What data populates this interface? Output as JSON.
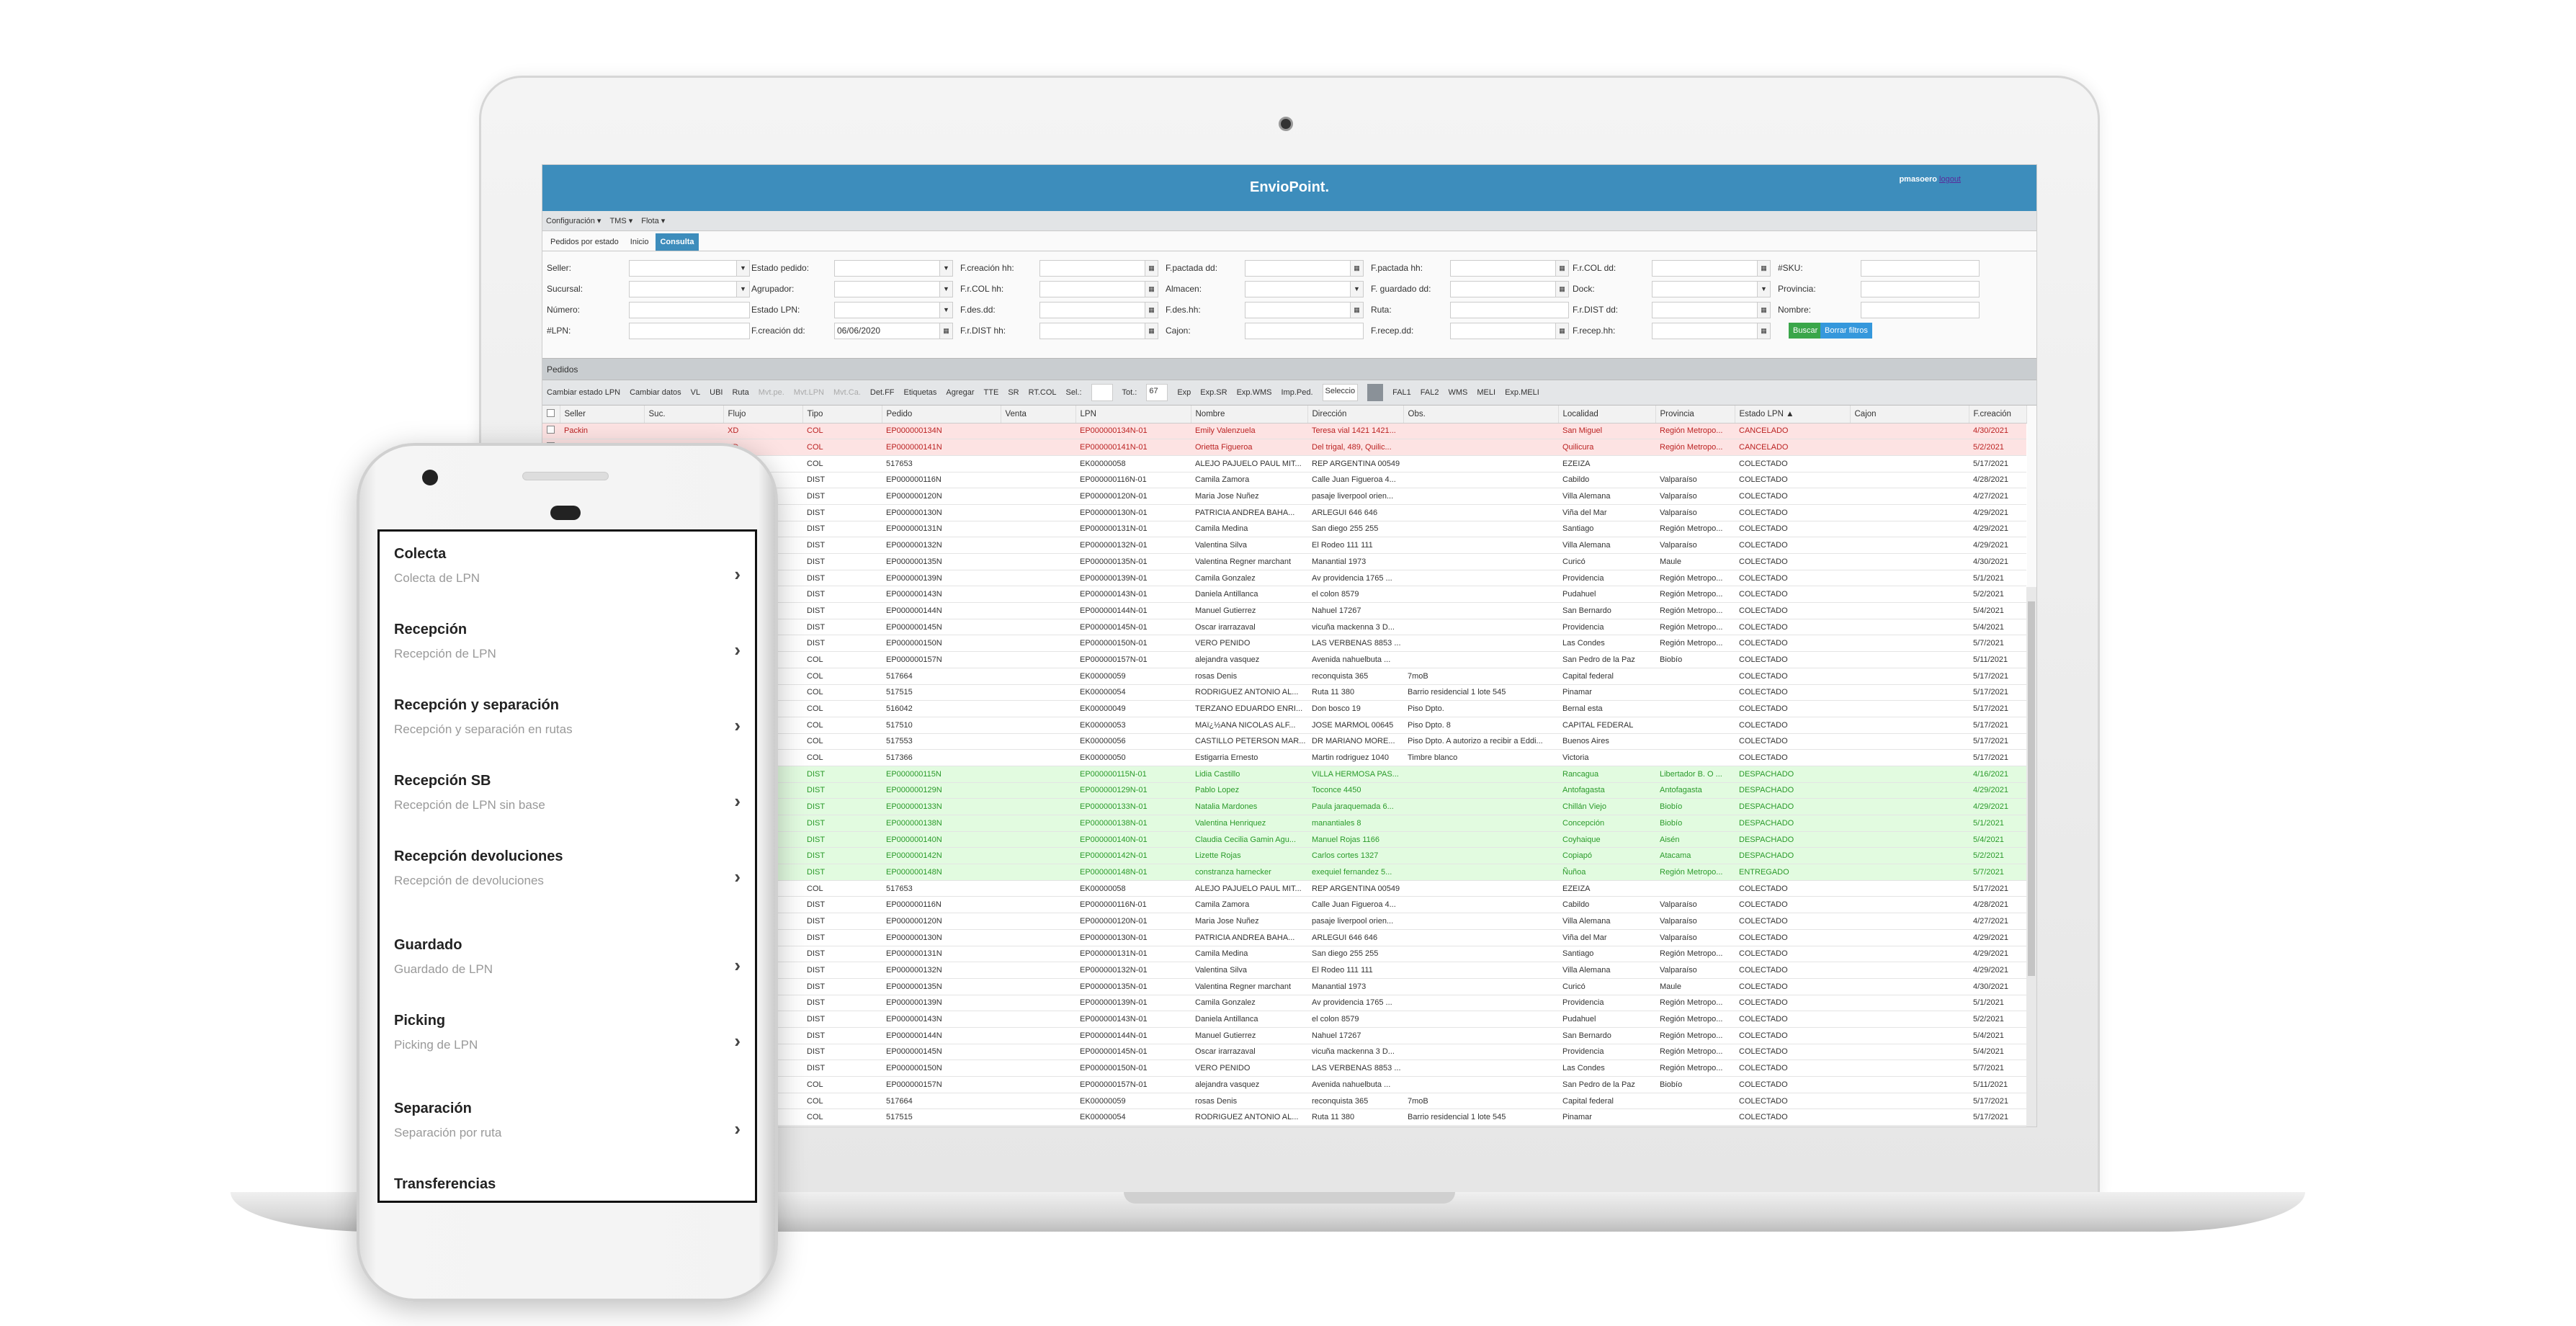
{
  "app": {
    "brand": "EnvioPoint.",
    "user": "pmasoero",
    "logout": "logout"
  },
  "menu": [
    "Configuración ▾",
    "TMS ▾",
    "Flota ▾"
  ],
  "tabs": [
    {
      "label": "Pedidos por estado"
    },
    {
      "label": "Inicio"
    },
    {
      "label": "Consulta",
      "active": true
    }
  ],
  "filters": {
    "labels": [
      [
        "Seller:",
        "Estado pedido:",
        "F.creación hh:",
        "F.pactada dd:",
        "F.pactada hh:",
        "F.r.COL dd:",
        "#SKU:"
      ],
      [
        "Sucursal:",
        "Agrupador:",
        "F.r.COL hh:",
        "Almacen:",
        "F. guardado dd:",
        "Dock:",
        "Provincia:"
      ],
      [
        "Número:",
        "Estado LPN:",
        "F.des.dd:",
        "F.des.hh:",
        "Ruta:",
        "F.r.DIST dd:",
        "Nombre:"
      ],
      [
        "#LPN:",
        "F.creación dd:",
        "F.r.DIST hh:",
        "Cajon:",
        "F.recep.dd:",
        "F.recep.hh:"
      ]
    ],
    "fecha_creacion_dd": "06/06/2020",
    "buscar": "Buscar",
    "borrar": "Borrar filtros"
  },
  "pedidos_title": "Pedidos",
  "toolbar": {
    "left": [
      "Cambiar estado LPN",
      "Cambiar datos",
      "VL",
      "UBI",
      "Ruta"
    ],
    "disabled": [
      "Mvt.pe.",
      "Mvt.LPN",
      "Mvt.Ca."
    ],
    "mid": [
      "Det.FF",
      "Etiquetas",
      "Agregar",
      "TTE",
      "SR",
      "RT.COL"
    ],
    "sel_label": "Sel.:",
    "tot_label": "Tot.:",
    "tot": "67",
    "right": [
      "Exp",
      "Exp.SR",
      "Exp.WMS",
      "Imp.Ped."
    ],
    "select_placeholder": "Seleccio",
    "end": [
      "FAL1",
      "FAL2",
      "WMS",
      "MELI",
      "Exp.MELI"
    ]
  },
  "columns": [
    "",
    "Seller",
    "Suc.",
    "Flujo",
    "Tipo",
    "Pedido",
    "Venta",
    "LPN",
    "Nombre",
    "Dirección",
    "Obs.",
    "Localidad",
    "Provincia",
    "Estado LPN ▲",
    "Cajon",
    "F.creación"
  ],
  "colors": {
    "header": "#3d8dbc",
    "cancel_bg": "#fde3e3",
    "green_bg": "#e2fbe0",
    "buscar": "#3aa64a",
    "borrar": "#3598dc"
  },
  "rows": [
    [
      "cancel",
      "Packin",
      "",
      "XD",
      "COL",
      "EP000000134N",
      "",
      "EP000000134N-01",
      "Emily Valenzuela",
      "Teresa vial 1421 1421...",
      "",
      "San Miguel",
      "Región Metropo...",
      "CANCELADO",
      "",
      "4/30/2021"
    ],
    [
      "cancel",
      "",
      "",
      "XD",
      "COL",
      "EP000000141N",
      "",
      "EP000000141N-01",
      "Orietta Figueroa",
      "Del trigal, 489, Quilic...",
      "",
      "Quilicura",
      "Región Metropo...",
      "CANCELADO",
      "",
      "5/2/2021"
    ],
    [
      "",
      "",
      "",
      "",
      "COL",
      "517653",
      "",
      "EK00000058",
      "ALEJO PAJUELO PAUL MIT...",
      "REP ARGENTINA 00549",
      "",
      "EZEIZA",
      "",
      "COLECTADO",
      "",
      "5/17/2021"
    ],
    [
      "",
      "",
      "",
      "",
      "DIST",
      "EP000000116N",
      "",
      "EP000000116N-01",
      "Camila Zamora",
      "Calle Juan Figueroa 4...",
      "",
      "Cabildo",
      "Valparaíso",
      "COLECTADO",
      "",
      "4/28/2021"
    ],
    [
      "",
      "",
      "",
      "",
      "DIST",
      "EP000000120N",
      "",
      "EP000000120N-01",
      "Maria Jose Nuñez",
      "pasaje liverpool orien...",
      "",
      "Villa Alemana",
      "Valparaíso",
      "COLECTADO",
      "",
      "4/27/2021"
    ],
    [
      "",
      "",
      "",
      "",
      "DIST",
      "EP000000130N",
      "",
      "EP000000130N-01",
      "PATRICIA ANDREA BAHA...",
      "ARLEGUI 646 646",
      "",
      "Viña del Mar",
      "Valparaíso",
      "COLECTADO",
      "",
      "4/29/2021"
    ],
    [
      "",
      "",
      "",
      "",
      "DIST",
      "EP000000131N",
      "",
      "EP000000131N-01",
      "Camila Medina",
      "San diego 255 255",
      "",
      "Santiago",
      "Región Metropo...",
      "COLECTADO",
      "",
      "4/29/2021"
    ],
    [
      "",
      "",
      "",
      "",
      "DIST",
      "EP000000132N",
      "",
      "EP000000132N-01",
      "Valentina Silva",
      "El Rodeo 111 111",
      "",
      "Villa Alemana",
      "Valparaíso",
      "COLECTADO",
      "",
      "4/29/2021"
    ],
    [
      "",
      "",
      "",
      "",
      "DIST",
      "EP000000135N",
      "",
      "EP000000135N-01",
      "Valentina Regner marchant",
      "Manantial 1973",
      "",
      "Curicó",
      "Maule",
      "COLECTADO",
      "",
      "4/30/2021"
    ],
    [
      "",
      "",
      "",
      "",
      "DIST",
      "EP000000139N",
      "",
      "EP000000139N-01",
      "Camila Gonzalez",
      "Av providencia 1765 ...",
      "",
      "Providencia",
      "Región Metropo...",
      "COLECTADO",
      "",
      "5/1/2021"
    ],
    [
      "",
      "",
      "",
      "",
      "DIST",
      "EP000000143N",
      "",
      "EP000000143N-01",
      "Daniela Antillanca",
      "el colon 8579",
      "",
      "Pudahuel",
      "Región Metropo...",
      "COLECTADO",
      "",
      "5/2/2021"
    ],
    [
      "",
      "",
      "",
      "",
      "DIST",
      "EP000000144N",
      "",
      "EP000000144N-01",
      "Manuel Gutierrez",
      "Nahuel 17267",
      "",
      "San Bernardo",
      "Región Metropo...",
      "COLECTADO",
      "",
      "5/4/2021"
    ],
    [
      "",
      "",
      "",
      "",
      "DIST",
      "EP000000145N",
      "",
      "EP000000145N-01",
      "Oscar irarrazaval",
      "vicuña mackenna 3 D...",
      "",
      "Providencia",
      "Región Metropo...",
      "COLECTADO",
      "",
      "5/4/2021"
    ],
    [
      "",
      "",
      "",
      "",
      "DIST",
      "EP000000150N",
      "",
      "EP000000150N-01",
      "VERO PENIDO",
      "LAS VERBENAS 8853 ...",
      "",
      "Las Condes",
      "Región Metropo...",
      "COLECTADO",
      "",
      "5/7/2021"
    ],
    [
      "",
      "",
      "",
      "",
      "COL",
      "EP000000157N",
      "",
      "EP000000157N-01",
      "alejandra vasquez",
      "Avenida nahuelbuta ...",
      "",
      "San Pedro de la Paz",
      "Biobío",
      "COLECTADO",
      "",
      "5/11/2021"
    ],
    [
      "",
      "",
      "",
      "",
      "COL",
      "517664",
      "",
      "EK00000059",
      "rosas Denis",
      "reconquista 365",
      "7moB",
      "Capital federal",
      "",
      "COLECTADO",
      "",
      "5/17/2021"
    ],
    [
      "",
      "",
      "",
      "",
      "COL",
      "517515",
      "",
      "EK00000054",
      "RODRIGUEZ ANTONIO AL...",
      "Ruta 11 380",
      "Barrio residencial 1 lote 545",
      "Pinamar",
      "",
      "COLECTADO",
      "",
      "5/17/2021"
    ],
    [
      "",
      "",
      "",
      "",
      "COL",
      "516042",
      "",
      "EK00000049",
      "TERZANO EDUARDO ENRI...",
      "Don bosco 19",
      "Piso Dpto.",
      "Bernal esta",
      "",
      "COLECTADO",
      "",
      "5/17/2021"
    ],
    [
      "",
      "",
      "",
      "",
      "COL",
      "517510",
      "",
      "EK00000053",
      "MAï¿½ANA NICOLAS ALF...",
      "JOSE MARMOL 00645",
      "Piso Dpto. 8",
      "CAPITAL FEDERAL",
      "",
      "COLECTADO",
      "",
      "5/17/2021"
    ],
    [
      "",
      "",
      "",
      "",
      "COL",
      "517553",
      "",
      "EK00000056",
      "CASTILLO PETERSON MAR...",
      "DR MARIANO MORE...",
      "Piso Dpto. A autorizo a recibir a Eddi...",
      "Buenos Aires",
      "",
      "COLECTADO",
      "",
      "5/17/2021"
    ],
    [
      "",
      "",
      "",
      "",
      "COL",
      "517366",
      "",
      "EK00000050",
      "Estigarria Ernesto",
      "Martin rodriguez 1040",
      "Timbre blanco",
      "Victoria",
      "",
      "COLECTADO",
      "",
      "5/17/2021"
    ],
    [
      "green",
      "",
      "",
      "",
      "DIST",
      "EP000000115N",
      "",
      "EP000000115N-01",
      "Lidia Castillo",
      "VILLA HERMOSA PAS...",
      "",
      "Rancagua",
      "Libertador B. O ...",
      "DESPACHADO",
      "",
      "4/16/2021"
    ],
    [
      "green",
      "",
      "",
      "",
      "DIST",
      "EP000000129N",
      "",
      "EP000000129N-01",
      "Pablo Lopez",
      "Toconce 4450",
      "",
      "Antofagasta",
      "Antofagasta",
      "DESPACHADO",
      "",
      "4/29/2021"
    ],
    [
      "green",
      "",
      "",
      "",
      "DIST",
      "EP000000133N",
      "",
      "EP000000133N-01",
      "Natalia Mardones",
      "Paula jaraquemada 6...",
      "",
      "Chillán Viejo",
      "Biobío",
      "DESPACHADO",
      "",
      "4/29/2021"
    ],
    [
      "green",
      "",
      "",
      "",
      "DIST",
      "EP000000138N",
      "",
      "EP000000138N-01",
      "Valentina Henriquez",
      "manantiales 8",
      "",
      "Concepción",
      "Biobío",
      "DESPACHADO",
      "",
      "5/1/2021"
    ],
    [
      "green",
      "",
      "",
      "",
      "DIST",
      "EP000000140N",
      "",
      "EP000000140N-01",
      "Claudia Cecilia Gamin Agu...",
      "Manuel Rojas 1166",
      "",
      "Coyhaique",
      "Aisén",
      "DESPACHADO",
      "",
      "5/4/2021"
    ],
    [
      "green",
      "",
      "",
      "",
      "DIST",
      "EP000000142N",
      "",
      "EP000000142N-01",
      "Lizette Rojas",
      "Carlos cortes 1327",
      "",
      "Copiapó",
      "Atacama",
      "DESPACHADO",
      "",
      "5/2/2021"
    ],
    [
      "green",
      "",
      "",
      "",
      "DIST",
      "EP000000148N",
      "",
      "EP000000148N-01",
      "constranza harnecker",
      "exequiel fernandez 5...",
      "",
      "Ñuñoa",
      "Región Metropo...",
      "ENTREGADO",
      "",
      "5/7/2021"
    ],
    [
      "",
      "",
      "",
      "",
      "COL",
      "517653",
      "",
      "EK00000058",
      "ALEJO PAJUELO PAUL MIT...",
      "REP ARGENTINA 00549",
      "",
      "EZEIZA",
      "",
      "COLECTADO",
      "",
      "5/17/2021"
    ],
    [
      "",
      "",
      "",
      "",
      "DIST",
      "EP000000116N",
      "",
      "EP000000116N-01",
      "Camila Zamora",
      "Calle Juan Figueroa 4...",
      "",
      "Cabildo",
      "Valparaíso",
      "COLECTADO",
      "",
      "4/28/2021"
    ],
    [
      "",
      "",
      "",
      "",
      "DIST",
      "EP000000120N",
      "",
      "EP000000120N-01",
      "Maria Jose Nuñez",
      "pasaje liverpool orien...",
      "",
      "Villa Alemana",
      "Valparaíso",
      "COLECTADO",
      "",
      "4/27/2021"
    ],
    [
      "",
      "",
      "",
      "",
      "DIST",
      "EP000000130N",
      "",
      "EP000000130N-01",
      "PATRICIA ANDREA BAHA...",
      "ARLEGUI 646 646",
      "",
      "Viña del Mar",
      "Valparaíso",
      "COLECTADO",
      "",
      "4/29/2021"
    ],
    [
      "",
      "",
      "",
      "",
      "DIST",
      "EP000000131N",
      "",
      "EP000000131N-01",
      "Camila Medina",
      "San diego 255 255",
      "",
      "Santiago",
      "Región Metropo...",
      "COLECTADO",
      "",
      "4/29/2021"
    ],
    [
      "",
      "",
      "",
      "",
      "DIST",
      "EP000000132N",
      "",
      "EP000000132N-01",
      "Valentina Silva",
      "El Rodeo 111 111",
      "",
      "Villa Alemana",
      "Valparaíso",
      "COLECTADO",
      "",
      "4/29/2021"
    ],
    [
      "",
      "",
      "",
      "",
      "DIST",
      "EP000000135N",
      "",
      "EP000000135N-01",
      "Valentina Regner marchant",
      "Manantial 1973",
      "",
      "Curicó",
      "Maule",
      "COLECTADO",
      "",
      "4/30/2021"
    ],
    [
      "",
      "",
      "",
      "",
      "DIST",
      "EP000000139N",
      "",
      "EP000000139N-01",
      "Camila Gonzalez",
      "Av providencia 1765 ...",
      "",
      "Providencia",
      "Región Metropo...",
      "COLECTADO",
      "",
      "5/1/2021"
    ],
    [
      "",
      "",
      "",
      "",
      "DIST",
      "EP000000143N",
      "",
      "EP000000143N-01",
      "Daniela Antillanca",
      "el colon 8579",
      "",
      "Pudahuel",
      "Región Metropo...",
      "COLECTADO",
      "",
      "5/2/2021"
    ],
    [
      "",
      "",
      "",
      "",
      "DIST",
      "EP000000144N",
      "",
      "EP000000144N-01",
      "Manuel Gutierrez",
      "Nahuel 17267",
      "",
      "San Bernardo",
      "Región Metropo...",
      "COLECTADO",
      "",
      "5/4/2021"
    ],
    [
      "",
      "",
      "",
      "",
      "DIST",
      "EP000000145N",
      "",
      "EP000000145N-01",
      "Oscar irarrazaval",
      "vicuña mackenna 3 D...",
      "",
      "Providencia",
      "Región Metropo...",
      "COLECTADO",
      "",
      "5/4/2021"
    ],
    [
      "",
      "",
      "",
      "",
      "DIST",
      "EP000000150N",
      "",
      "EP000000150N-01",
      "VERO PENIDO",
      "LAS VERBENAS 8853 ...",
      "",
      "Las Condes",
      "Región Metropo...",
      "COLECTADO",
      "",
      "5/7/2021"
    ],
    [
      "",
      "",
      "",
      "",
      "COL",
      "EP000000157N",
      "",
      "EP000000157N-01",
      "alejandra vasquez",
      "Avenida nahuelbuta ...",
      "",
      "San Pedro de la Paz",
      "Biobío",
      "COLECTADO",
      "",
      "5/11/2021"
    ],
    [
      "",
      "",
      "",
      "",
      "COL",
      "517664",
      "",
      "EK00000059",
      "rosas Denis",
      "reconquista 365",
      "7moB",
      "Capital federal",
      "",
      "COLECTADO",
      "",
      "5/17/2021"
    ],
    [
      "",
      "",
      "",
      "",
      "COL",
      "517515",
      "",
      "EK00000054",
      "RODRIGUEZ ANTONIO AL...",
      "Ruta 11 380",
      "Barrio residencial 1 lote 545",
      "Pinamar",
      "",
      "COLECTADO",
      "",
      "5/17/2021"
    ]
  ],
  "phone": {
    "items": [
      {
        "title": "Colecta",
        "sub": "Colecta de LPN"
      },
      {
        "title": "Recepción",
        "sub": "Recepción de LPN"
      },
      {
        "title": "Recepción y separación",
        "sub": "Recepción y separación en rutas"
      },
      {
        "title": "Recepción SB",
        "sub": "Recepción de LPN sin base"
      },
      {
        "title": "Recepción devoluciones",
        "sub": "Recepción de devoluciones"
      },
      {
        "title": "Guardado",
        "sub": "Guardado de LPN"
      },
      {
        "title": "Picking",
        "sub": "Picking de LPN"
      },
      {
        "title": "Separación",
        "sub": "Separación por ruta"
      },
      {
        "title": "Transferencias",
        "sub": ""
      }
    ]
  }
}
